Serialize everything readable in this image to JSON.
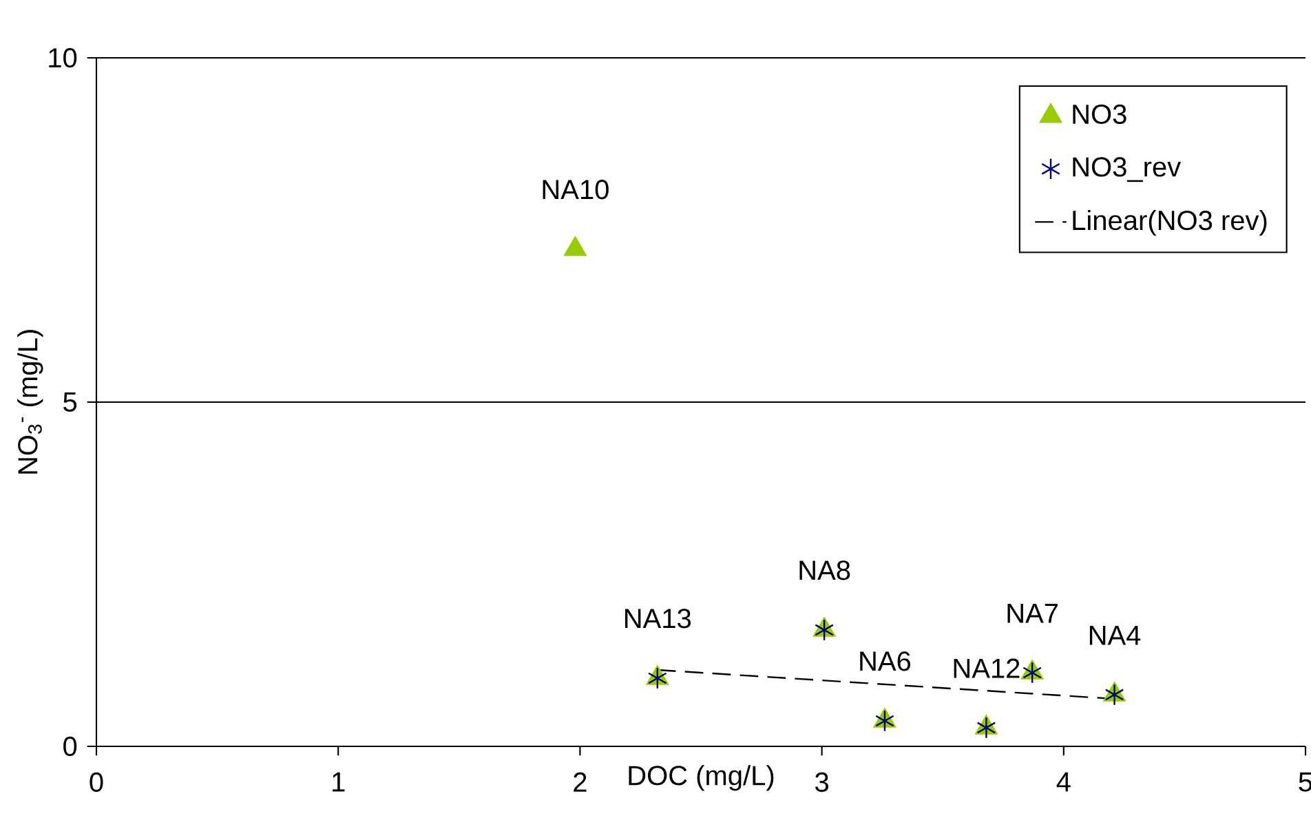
{
  "chart_data": {
    "type": "scatter",
    "xlabel": "DOC (mg/L)",
    "ylabel": "NO$_{3}$$^{-}$ (mg/L)",
    "xlim": [
      0,
      5
    ],
    "ylim": [
      0,
      10
    ],
    "xticks": [
      0,
      1,
      2,
      3,
      4,
      5
    ],
    "yticks": [
      0,
      5,
      10
    ],
    "grid": "y",
    "legend": "top right",
    "series": [
      {
        "name": "NO3",
        "color": "#99cc00",
        "marker": "triangle",
        "x": [
          1.98,
          2.32,
          3.01,
          3.26,
          3.68,
          3.87,
          4.21
        ],
        "values": [
          7.22,
          0.99,
          1.69,
          0.37,
          0.27,
          1.07,
          0.75
        ]
      },
      {
        "name": "NO3_rev",
        "color": "#000080",
        "marker": "cross",
        "x": [
          2.32,
          3.01,
          3.26,
          3.68,
          3.87,
          4.21
        ],
        "values": [
          0.99,
          1.69,
          0.37,
          0.27,
          1.07,
          0.75
        ]
      },
      {
        "name": "Linear(NO3 rev)",
        "type": "line",
        "color": "#000000",
        "line_style": "dashed",
        "marker": "none",
        "x": [
          2.32,
          4.21
        ],
        "values": [
          1.11,
          0.69
        ]
      }
    ],
    "annotations": [
      {
        "text": "NA10",
        "x": 1.98,
        "y": 7.22
      },
      {
        "text": "NA13",
        "x": 2.32,
        "y": 0.99
      },
      {
        "text": "NA8",
        "x": 3.01,
        "y": 1.69
      },
      {
        "text": "NA6",
        "x": 3.26,
        "y": 0.37
      },
      {
        "text": "NA12",
        "x": 3.68,
        "y": 0.27
      },
      {
        "text": "NA7",
        "x": 3.87,
        "y": 1.07
      },
      {
        "text": "NA4",
        "x": 4.21,
        "y": 0.75
      }
    ]
  }
}
